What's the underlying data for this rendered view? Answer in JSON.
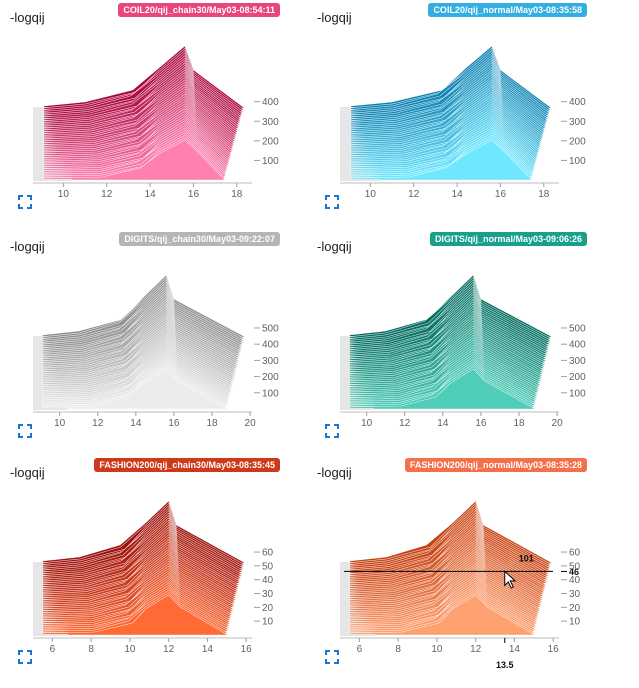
{
  "panels": [
    {
      "label": "-logqij",
      "tag": "COIL20/qij_chain30/May03-08:54:11",
      "tag_color": "#e8457a",
      "hi": "#a8043d",
      "lo": "#ff7fae"
    },
    {
      "label": "-logqij",
      "tag": "COIL20/qij_normal/May03-08:35:58",
      "tag_color": "#33aee0",
      "hi": "#0b7fb0",
      "lo": "#6fe8ff"
    },
    {
      "label": "-logqij",
      "tag": "DIGITS/qij_chain30/May03-09:22:07",
      "tag_color": "#b5b5b5",
      "hi": "#8c8c8c",
      "lo": "#ececec"
    },
    {
      "label": "-logqij",
      "tag": "DIGITS/qij_normal/May03-09:06:26",
      "tag_color": "#17a08c",
      "hi": "#00695c",
      "lo": "#4fcdb8"
    },
    {
      "label": "-logqij",
      "tag": "FASHION200/qij_chain30/May03-08:35:45",
      "tag_color": "#cc3a1a",
      "hi": "#9b0f0a",
      "lo": "#ff6a35"
    },
    {
      "label": "-logqij",
      "tag": "FASHION200/qij_normal/May03-08:35:28",
      "tag_color": "#f4704a",
      "hi": "#c64010",
      "lo": "#ffa070"
    }
  ],
  "chart_data": [
    {
      "type": "area",
      "chart_kind": "histogram-ridgeline",
      "title": "COIL20/qij_chain30/May03-08:54:11",
      "ylabel": "-logqij",
      "x_ticks": [
        10,
        12,
        14,
        16,
        18
      ],
      "xlim": [
        8.6,
        18.7
      ],
      "y_ticks": [
        100,
        200,
        300,
        400
      ],
      "ylim": [
        0,
        480
      ]
    },
    {
      "type": "area",
      "chart_kind": "histogram-ridgeline",
      "title": "COIL20/qij_normal/May03-08:35:58",
      "ylabel": "-logqij",
      "x_ticks": [
        10,
        12,
        14,
        16,
        18
      ],
      "xlim": [
        8.6,
        18.7
      ],
      "y_ticks": [
        100,
        200,
        300,
        400
      ],
      "ylim": [
        0,
        480
      ]
    },
    {
      "type": "area",
      "chart_kind": "histogram-ridgeline",
      "title": "DIGITS/qij_chain30/May03-09:22:07",
      "ylabel": "-logqij",
      "x_ticks": [
        10,
        12,
        14,
        16,
        18,
        20
      ],
      "xlim": [
        8.6,
        20.1
      ],
      "y_ticks": [
        100,
        200,
        300,
        400,
        500
      ],
      "ylim": [
        0,
        580
      ]
    },
    {
      "type": "area",
      "chart_kind": "histogram-ridgeline",
      "title": "DIGITS/qij_normal/May03-09:06:26",
      "ylabel": "-logqij",
      "x_ticks": [
        10,
        12,
        14,
        16,
        18,
        20
      ],
      "xlim": [
        8.6,
        20.1
      ],
      "y_ticks": [
        100,
        200,
        300,
        400,
        500
      ],
      "ylim": [
        0,
        580
      ]
    },
    {
      "type": "area",
      "chart_kind": "histogram-ridgeline",
      "title": "FASHION200/qij_chain30/May03-08:35:45",
      "ylabel": "-logqij",
      "x_ticks": [
        6,
        8,
        10,
        12,
        14,
        16
      ],
      "xlim": [
        5,
        16.3
      ],
      "y_ticks": [
        10,
        20,
        30,
        40,
        50,
        60
      ],
      "ylim": [
        0,
        68
      ]
    },
    {
      "type": "area",
      "chart_kind": "histogram-ridgeline",
      "title": "FASHION200/qij_normal/May03-08:35:28",
      "ylabel": "-logqij",
      "x_ticks": [
        6,
        8,
        10,
        12,
        14,
        16
      ],
      "xlim": [
        5,
        16.3
      ],
      "y_ticks": [
        10,
        20,
        30,
        40,
        50,
        60
      ],
      "ylim": [
        0,
        68
      ],
      "hover": {
        "x": 13.5,
        "step": 46,
        "value": "101",
        "x_label": "13.5",
        "step_label": "46"
      }
    }
  ]
}
